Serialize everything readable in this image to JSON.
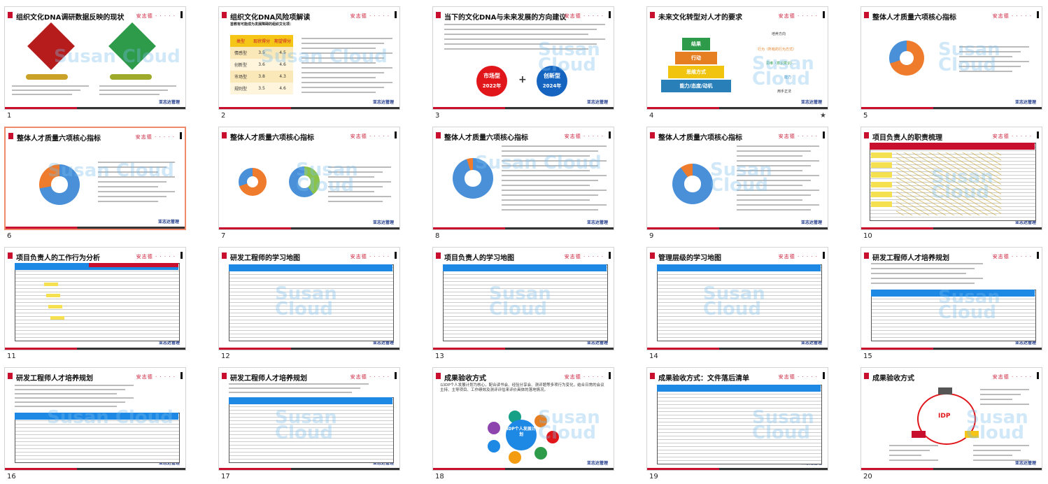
{
  "brand_text": "安志德 · · · · ·",
  "watermark": "Susan Cloud",
  "footer_logo": "亚志达管理",
  "slides": [
    {
      "num": "1",
      "title": "组织文化DNA调研数据反映的现状"
    },
    {
      "num": "2",
      "title": "组织文化DNA风险项解读"
    },
    {
      "num": "3",
      "title": "当下的文化DNA与未来发展的方向建议"
    },
    {
      "num": "4",
      "title": "未来文化转型对人才的要求"
    },
    {
      "num": "5",
      "title": "整体人才质量六项核心指标"
    },
    {
      "num": "6",
      "title": "整体人才质量六项核心指标"
    },
    {
      "num": "7",
      "title": "整体人才质量六项核心指标"
    },
    {
      "num": "8",
      "title": "整体人才质量六项核心指标"
    },
    {
      "num": "9",
      "title": "整体人才质量六项核心指标"
    },
    {
      "num": "10",
      "title": "项目负责人的职责梳理"
    },
    {
      "num": "11",
      "title": "项目负责人的工作行为分析"
    },
    {
      "num": "12",
      "title": "研发工程师的学习地图"
    },
    {
      "num": "13",
      "title": "项目负责人的学习地图"
    },
    {
      "num": "14",
      "title": "管理层级的学习地图"
    },
    {
      "num": "15",
      "title": "研发工程师人才培养规划"
    },
    {
      "num": "16",
      "title": "研发工程师人才培养规划"
    },
    {
      "num": "17",
      "title": "研发工程师人才培养规划"
    },
    {
      "num": "18",
      "title": "成果验收方式"
    },
    {
      "num": "19",
      "title": "成果验收方式：文件落后清单"
    },
    {
      "num": "20",
      "title": "成果验收方式"
    }
  ],
  "slide2": {
    "subtitle": "首教有可能成为发展障碍的组织文化项：",
    "head": [
      "类型",
      "现状得分",
      "期望得分"
    ],
    "rows": [
      [
        "情感型",
        "3.5",
        "4.5"
      ],
      [
        "创新型",
        "3.6",
        "4.6"
      ],
      [
        "市场型",
        "3.8",
        "4.3"
      ],
      [
        "规则型",
        "3.5",
        "4.6"
      ]
    ]
  },
  "slide3": {
    "market": "市场型",
    "market_year": "2022年",
    "innov": "创新型",
    "innov_year": "2024年",
    "plus": "+"
  },
  "slide4": {
    "p1": "结果",
    "p2": "行动",
    "p3": "思维方式",
    "p4": "能力/态度/动机",
    "a1": "培养方向",
    "a2": "行为（所有的行为方式）",
    "a3": "思维（意识意识）",
    "a4": "能力",
    "a5": "用手正法"
  },
  "slide18": {
    "center": "IDP个人发展计划",
    "text": "以IDP个人发展计划为核心，配合读书会、经验分享会、测评题等多项行为变化，结合日常的会议主持、主导项目、工作绩效及测评评估来评价具体的落地情况。"
  },
  "slide20": {
    "idp": "IDP"
  }
}
